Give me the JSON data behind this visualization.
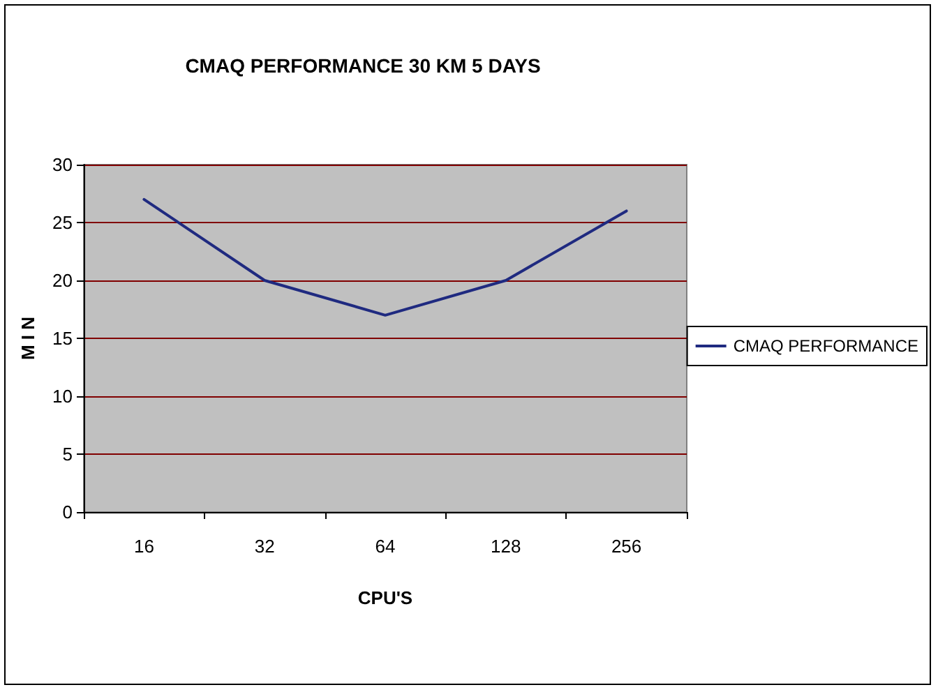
{
  "chart_data": {
    "type": "line",
    "title": "CMAQ PERFORMANCE 30 KM 5 DAYS",
    "xlabel": "CPU'S",
    "ylabel": "M I N",
    "categories": [
      "16",
      "32",
      "64",
      "128",
      "256"
    ],
    "series": [
      {
        "name": "CMAQ PERFORMANCE",
        "color": "#1f2a80",
        "values": [
          27,
          20,
          17,
          20,
          26
        ]
      }
    ],
    "ylim": [
      0,
      30
    ],
    "yticks": [
      0,
      5,
      10,
      15,
      20,
      25,
      30
    ],
    "grid": "y",
    "legend": "right",
    "marker": "none",
    "line_style": "solid"
  }
}
